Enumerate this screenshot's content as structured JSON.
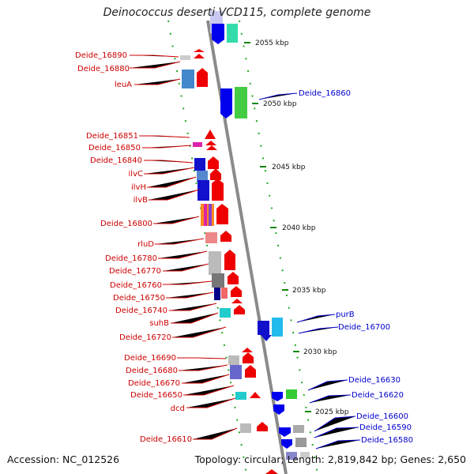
{
  "header": {
    "title": "Deinococcus deserti VCD115, complete genome"
  },
  "footer": {
    "accession": "Accession: NC_012526",
    "topology": "Topology: circular; Length: 2,819,842 bp; Genes: 2,650"
  },
  "ticks": [
    {
      "label": "2055 kbp"
    },
    {
      "label": "2050 kbp"
    },
    {
      "label": "2045 kbp"
    },
    {
      "label": "2040 kbp"
    },
    {
      "label": "2035 kbp"
    },
    {
      "label": "2030 kbp"
    },
    {
      "label": "2025 kbp"
    }
  ],
  "left_labels": [
    {
      "name": "Deide_16890"
    },
    {
      "name": "Deide_16880"
    },
    {
      "name": "leuA"
    },
    {
      "name": "Deide_16851"
    },
    {
      "name": "Deide_16850"
    },
    {
      "name": "Deide_16840"
    },
    {
      "name": "ilvC"
    },
    {
      "name": "ilvH"
    },
    {
      "name": "ilvB"
    },
    {
      "name": "Deide_16800"
    },
    {
      "name": "rluD"
    },
    {
      "name": "Deide_16780"
    },
    {
      "name": "Deide_16770"
    },
    {
      "name": "Deide_16760"
    },
    {
      "name": "Deide_16750"
    },
    {
      "name": "Deide_16740"
    },
    {
      "name": "suhB"
    },
    {
      "name": "Deide_16720"
    },
    {
      "name": "Deide_16690"
    },
    {
      "name": "Deide_16680"
    },
    {
      "name": "Deide_16670"
    },
    {
      "name": "Deide_16650"
    },
    {
      "name": "dcd"
    },
    {
      "name": "Deide_16610"
    }
  ],
  "right_labels": [
    {
      "name": "Deide_16860"
    },
    {
      "name": "purB"
    },
    {
      "name": "Deide_16700"
    },
    {
      "name": "Deide_16630"
    },
    {
      "name": "Deide_16620"
    },
    {
      "name": "Deide_16600"
    },
    {
      "name": "Deide_16590"
    },
    {
      "name": "Deide_16580"
    }
  ],
  "colors": {
    "forward": "#ee0000",
    "reverse": "#0000ee",
    "axis": "#8a8a8a",
    "tick": "#118811",
    "gc": "#00aa00"
  }
}
